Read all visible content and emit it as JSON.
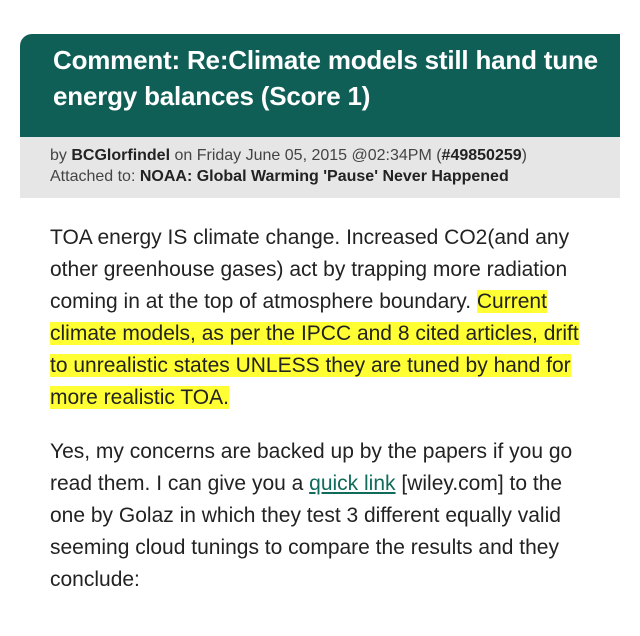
{
  "comment": {
    "title": "Comment: Re:Climate models still hand tune energy balances (Score 1)",
    "byline": {
      "by_prefix": "by",
      "author": "BCGlorfindel",
      "on_text": "on Friday June 05, 2015 @02:34PM (",
      "comment_id": "#49850259",
      "close_paren": ")",
      "attached_label": "Attached to:",
      "story_title": "NOAA: Global Warming 'Pause' Never Happened"
    },
    "body": {
      "p1_plain": "TOA energy IS climate change. Increased CO2(and any other greenhouse gases) act by trapping more radiation coming in at the top of atmosphere boundary.",
      "p1_highlight": "Current climate models, as per the IPCC and 8 cited articles, drift to unrealistic states UNLESS they are tuned by hand for more realistic TOA.",
      "p2_before_link": "Yes, my concerns are backed up by the papers if you go read them. I can give you a",
      "p2_link": "quick link",
      "p2_domain": "[wiley.com]",
      "p2_after_link": "to the one by Golaz in which they test 3 different equally valid seeming cloud tunings to compare the results and they conclude:"
    }
  },
  "colors": {
    "header_bg": "#0f5f57",
    "details_bg": "#e6e6e6",
    "highlight": "#ffff33",
    "link": "#0f6b5a"
  }
}
